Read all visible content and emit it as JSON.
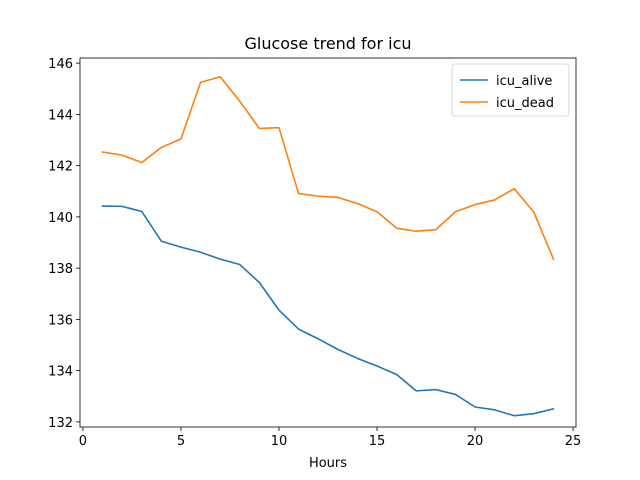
{
  "chart_data": {
    "type": "line",
    "title": "Glucose trend for icu",
    "xlabel": "Hours",
    "ylabel": "",
    "xlim": [
      -0.15,
      25.15
    ],
    "ylim": [
      131.8,
      146.2
    ],
    "xticks": [
      0,
      5,
      10,
      15,
      20,
      25
    ],
    "yticks": [
      132,
      134,
      136,
      138,
      140,
      142,
      144,
      146
    ],
    "grid": false,
    "legend_position": "top-right",
    "x": [
      1,
      2,
      3,
      4,
      5,
      6,
      7,
      8,
      9,
      10,
      11,
      12,
      13,
      14,
      15,
      16,
      17,
      18,
      19,
      20,
      21,
      22,
      23,
      24
    ],
    "series": [
      {
        "name": "icu_alive",
        "color": "#1f77b4",
        "values": [
          140.42,
          140.41,
          140.21,
          139.05,
          138.82,
          138.62,
          138.35,
          138.14,
          137.44,
          136.36,
          135.62,
          135.24,
          134.83,
          134.48,
          134.18,
          133.85,
          133.21,
          133.26,
          133.07,
          132.58,
          132.47,
          132.24,
          132.32,
          132.51
        ]
      },
      {
        "name": "icu_dead",
        "color": "#ff7f0e",
        "values": [
          142.53,
          142.41,
          142.12,
          142.71,
          143.04,
          145.25,
          145.47,
          144.51,
          143.45,
          143.48,
          140.91,
          140.81,
          140.76,
          140.52,
          140.2,
          139.56,
          139.44,
          139.5,
          140.2,
          140.48,
          140.66,
          141.1,
          140.18,
          138.35
        ]
      }
    ]
  }
}
